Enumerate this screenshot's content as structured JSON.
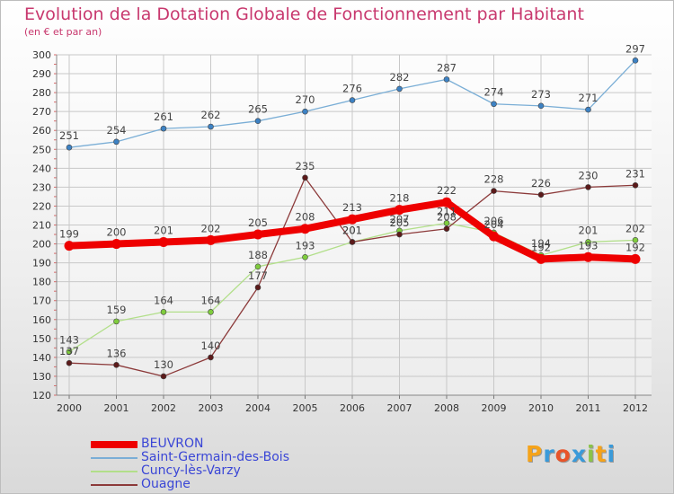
{
  "title": "Evolution de la Dotation Globale de Fonctionnement par Habitant",
  "subtitle": "(en € et par an)",
  "logo": {
    "text": "Proxiti",
    "letter_colors": [
      "#f5a31a",
      "#3a9ad9",
      "#e8542a",
      "#3a9ad9",
      "#8bc34a",
      "#f5a31a",
      "#3a9ad9"
    ]
  },
  "chart_data": {
    "type": "line",
    "title": "Evolution de la Dotation Globale de Fonctionnement par Habitant",
    "subtitle": "(en € et par an)",
    "xlabel": "",
    "ylabel": "",
    "x": [
      "2000",
      "2001",
      "2002",
      "2003",
      "2004",
      "2005",
      "2006",
      "2007",
      "2008",
      "2009",
      "2010",
      "2011",
      "2012"
    ],
    "ylim": [
      120,
      300
    ],
    "yticks": [
      120,
      130,
      140,
      150,
      160,
      170,
      180,
      190,
      200,
      210,
      220,
      230,
      240,
      250,
      260,
      270,
      280,
      290,
      300
    ],
    "grid": true,
    "legend_position": "bottom-left",
    "series": [
      {
        "name": "BEUVRON",
        "color": "#ee0000",
        "point_color": "#ee0000",
        "width": "thick",
        "values": [
          199,
          200,
          201,
          202,
          205,
          208,
          213,
          218,
          222,
          204,
          192,
          193,
          192
        ]
      },
      {
        "name": "Saint-Germain-des-Bois",
        "color": "#7aaed6",
        "point_color": "#3d82c4",
        "width": "thin",
        "values": [
          251,
          254,
          261,
          262,
          265,
          270,
          276,
          282,
          287,
          274,
          273,
          271,
          297
        ]
      },
      {
        "name": "Cuncy-lès-Varzy",
        "color": "#b2df8a",
        "point_color": "#7fcc3d",
        "width": "thin",
        "values": [
          143,
          159,
          164,
          164,
          188,
          193,
          201,
          207,
          211,
          206,
          194,
          201,
          202
        ]
      },
      {
        "name": "Ouagne",
        "color": "#8c3a3a",
        "point_color": "#5c1a1a",
        "width": "thin",
        "values": [
          137,
          136,
          130,
          140,
          177,
          235,
          201,
          205,
          208,
          228,
          226,
          230,
          231
        ]
      }
    ]
  }
}
